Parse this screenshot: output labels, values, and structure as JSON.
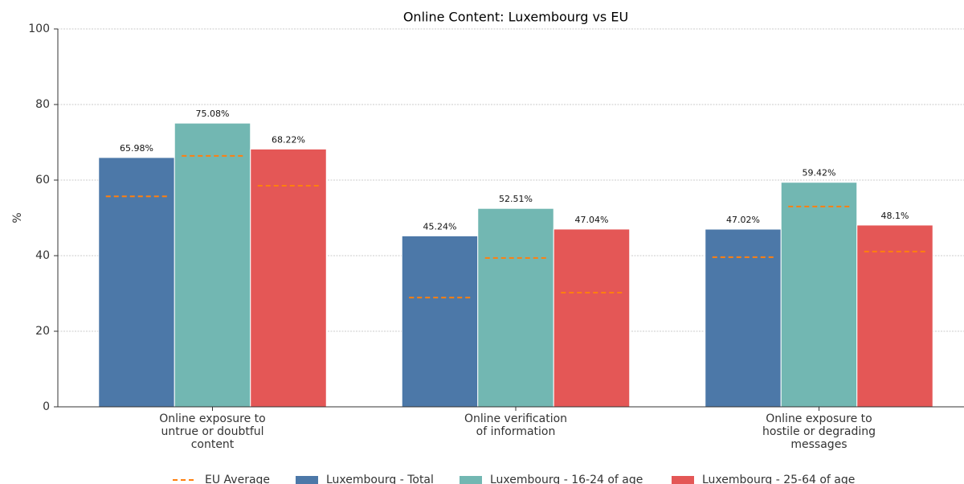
{
  "chart_data": {
    "type": "bar",
    "title": "Online Content: Luxembourg vs EU",
    "y_label": "%",
    "categories": [
      "Online exposure to\nuntrue or doubtful\ncontent",
      "Online verification\nof information",
      "Online exposure to\nhostile or degrading\nmessages"
    ],
    "series": [
      {
        "name": "Luxembourg - Total",
        "color": "#4c78a8",
        "values": [
          65.98,
          45.24,
          47.02
        ],
        "value_labels": [
          "65.98%",
          "45.24%",
          "47.02%"
        ],
        "eu_average": [
          55.7,
          28.9,
          39.6
        ]
      },
      {
        "name": "Luxembourg - 16-24 of age",
        "color": "#72b7b2",
        "values": [
          75.08,
          52.51,
          59.42
        ],
        "value_labels": [
          "75.08%",
          "52.51%",
          "59.42%"
        ],
        "eu_average": [
          66.4,
          39.4,
          53.0
        ]
      },
      {
        "name": "Luxembourg - 25-64 of age",
        "color": "#e45756",
        "values": [
          68.22,
          47.04,
          48.1
        ],
        "value_labels": [
          "68.22%",
          "47.04%",
          "48.1%"
        ],
        "eu_average": [
          58.5,
          30.2,
          41.1
        ]
      }
    ],
    "eu_average_name": "EU Average",
    "eu_average_color": "#ff7f0e",
    "ylim": [
      0,
      100
    ],
    "yticks": [
      0,
      20,
      40,
      60,
      80,
      100
    ],
    "grid": true
  }
}
